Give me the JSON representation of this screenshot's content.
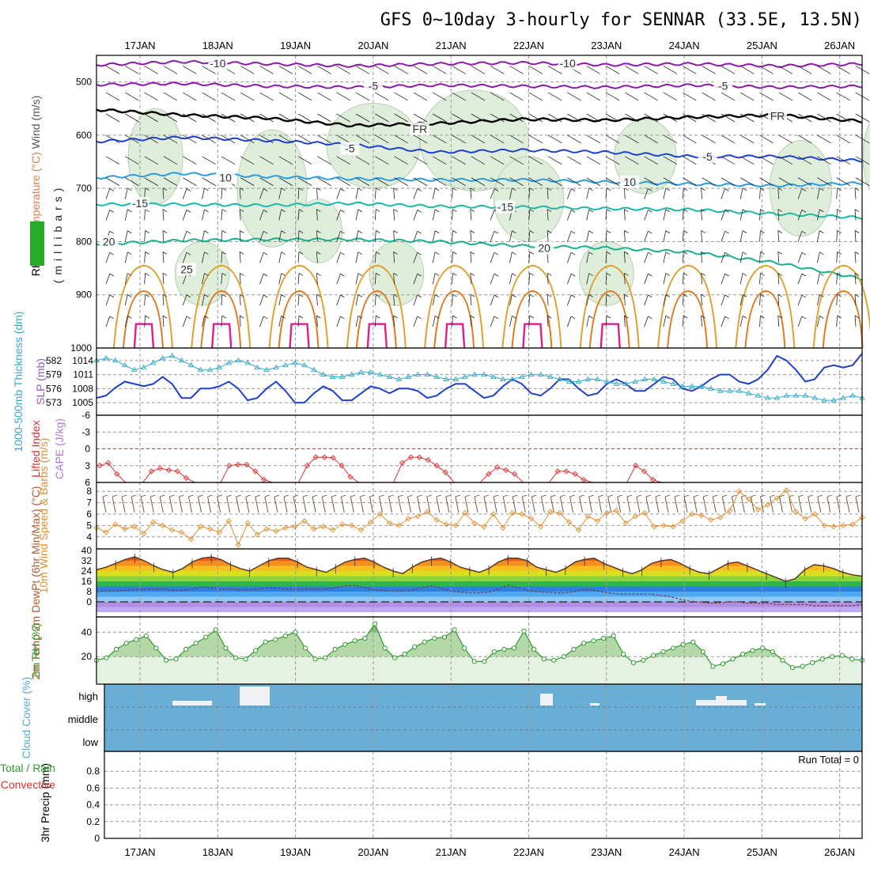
{
  "title": "GFS 0~10day 3-hourly for SENNAR (33.5E, 13.5N)",
  "dates": [
    "17JAN",
    "18JAN",
    "19JAN",
    "20JAN",
    "21JAN",
    "22JAN",
    "23JAN",
    "24JAN",
    "25JAN",
    "26JAN"
  ],
  "colors": {
    "grid": "#999999",
    "rh_fill": "#dfeedb",
    "slp": "#1f3fcc",
    "thick": "#33aacc",
    "li": "#e03030",
    "wind10": "#e09030",
    "barb": "#6b4a2a",
    "rh2m": "#2e9a2e",
    "cloud": "#6aaed6",
    "frz": "#000000"
  },
  "chart_data": [
    {
      "type": "line",
      "id": "upper_air",
      "ylabel_parts": [
        "RH (%)",
        "Temperature (°C)",
        "Wind (m/s)"
      ],
      "yaxis_letters": "(millibars)",
      "yticks": [
        500,
        600,
        700,
        800,
        900,
        1000
      ],
      "ylim": [
        450,
        1000
      ],
      "contour_labels": [
        {
          "t": "-10",
          "d": 1.0,
          "p": 465
        },
        {
          "t": "-10",
          "d": 5.5,
          "p": 465
        },
        {
          "t": "-5",
          "d": 3.0,
          "p": 507
        },
        {
          "t": "-5",
          "d": 7.5,
          "p": 507
        },
        {
          "t": "FR",
          "d": 3.6,
          "p": 588
        },
        {
          "t": "FR",
          "d": 8.2,
          "p": 564
        },
        {
          "t": "-5",
          "d": 2.7,
          "p": 625
        },
        {
          "t": "-5",
          "d": 7.3,
          "p": 640
        },
        {
          "t": "10",
          "d": 1.1,
          "p": 680
        },
        {
          "t": "10",
          "d": 6.3,
          "p": 688
        },
        {
          "t": "-15",
          "d": 0.0,
          "p": 728
        },
        {
          "t": "-15",
          "d": 4.7,
          "p": 735
        },
        {
          "t": "20",
          "d": -0.4,
          "p": 800
        },
        {
          "t": "20",
          "d": 5.2,
          "p": 812
        },
        {
          "t": "25",
          "d": 0.6,
          "p": 852
        }
      ],
      "isotherms": [
        {
          "label": "-10",
          "color": "#8a1aa8",
          "p": [
            468,
            462,
            466,
            470,
            466,
            464,
            468,
            466,
            470,
            466
          ]
        },
        {
          "label": "-5",
          "color": "#8a1aa8",
          "p": [
            505,
            503,
            508,
            510,
            506,
            508,
            510,
            506,
            510,
            508
          ]
        },
        {
          "label": "FR",
          "color": "#000000",
          "p": [
            552,
            562,
            568,
            582,
            578,
            570,
            572,
            566,
            562,
            574
          ]
        },
        {
          "label": "5",
          "color": "#1f3fcc",
          "p": [
            612,
            604,
            610,
            618,
            632,
            628,
            632,
            640,
            640,
            648
          ]
        },
        {
          "label": "10",
          "color": "#2a9de0",
          "p": [
            680,
            672,
            678,
            682,
            684,
            684,
            688,
            692,
            695,
            690
          ]
        },
        {
          "label": "15",
          "color": "#1bb8a8",
          "p": [
            730,
            730,
            732,
            728,
            734,
            735,
            738,
            740,
            748,
            755
          ]
        },
        {
          "label": "20",
          "color": "#18b090",
          "p": [
            805,
            798,
            796,
            796,
            800,
            808,
            812,
            820,
            840,
            870
          ]
        }
      ]
    },
    {
      "type": "line",
      "id": "slp_thickness",
      "ylabel_left": "1000-500mb Thickness (dm)",
      "ylabel_right": "SLP (mb)",
      "left_ticks": [
        573,
        576,
        579,
        582
      ],
      "right_ticks": [
        1005,
        1008,
        1011,
        1014
      ],
      "slp": [
        1006,
        1006.5,
        1008.2,
        1009.5,
        1009,
        1008.5,
        1009,
        1010.5,
        1009,
        1006,
        1006,
        1008,
        1008,
        1008.5,
        1009.5,
        1008,
        1005.5,
        1006,
        1008,
        1009.5,
        1007.5,
        1005,
        1005,
        1007,
        1008.5,
        1007.5,
        1005.5,
        1005.5,
        1007,
        1008.5,
        1008,
        1007,
        1008,
        1008,
        1007.5,
        1006,
        1006.5,
        1008,
        1009,
        1009,
        1007.5,
        1006,
        1006.5,
        1008.5,
        1010,
        1009,
        1007,
        1006.5,
        1008,
        1010,
        1010,
        1008,
        1006.5,
        1007,
        1009,
        1010,
        1009,
        1007.5,
        1007.5,
        1009,
        1010.5,
        1010,
        1008,
        1007.5,
        1008.5,
        1010,
        1011,
        1011,
        1009.5,
        1009,
        1010,
        1012,
        1015,
        1014,
        1012,
        1009.5,
        1010,
        1012.5,
        1013,
        1012.5,
        1013,
        1015.5
      ],
      "thick": [
        582,
        582.5,
        582,
        581,
        580,
        580.5,
        581.5,
        582.5,
        583,
        582,
        581,
        580,
        580,
        580.5,
        581.5,
        582,
        581.5,
        580.5,
        580,
        580.5,
        581,
        581.5,
        581,
        580,
        579,
        578.5,
        578.5,
        579,
        579.5,
        579.5,
        579,
        578.5,
        578,
        578.5,
        579,
        579,
        578.5,
        578,
        578,
        578.5,
        579,
        579,
        578.5,
        578,
        578,
        578.5,
        579,
        579,
        578.5,
        578,
        577.5,
        577.5,
        578,
        578,
        577.5,
        577,
        577,
        577.5,
        578,
        578,
        577.5,
        577,
        576.5,
        576.5,
        576.5,
        576,
        575.5,
        575.5,
        575.5,
        575,
        574.5,
        574,
        574,
        574.5,
        574.5,
        574.5,
        574,
        573.5,
        573.5,
        574,
        574.5,
        574
      ]
    },
    {
      "type": "line",
      "id": "lifted_cape",
      "ylabel_left": "Lifted Index",
      "ylabel_right": "CAPE (J/kg)",
      "yticks": [
        "-6",
        "-3",
        "0",
        "3",
        "6"
      ],
      "li": [
        3,
        2.5,
        4.5,
        6,
        6,
        6,
        4,
        3.5,
        3.8,
        4,
        5.2,
        6,
        6,
        6,
        6,
        3,
        2.8,
        2.8,
        4,
        5.5,
        6,
        6,
        6,
        6,
        3,
        1.5,
        1.5,
        1.6,
        3,
        5,
        6,
        6,
        6,
        6,
        6,
        2.5,
        1.5,
        1.5,
        2,
        3,
        4.2,
        6,
        6,
        6,
        6,
        4.5,
        3.3,
        3.8,
        4.5,
        6,
        6,
        6,
        6,
        4,
        4,
        4.5,
        5.5,
        6,
        6,
        6,
        6,
        6,
        3,
        4,
        5.5,
        6
      ]
    },
    {
      "type": "line",
      "id": "wind10m",
      "ylabel": "10m Wind Speed & Barbs (m/s)",
      "yticks": [
        4,
        5,
        6,
        7,
        8
      ],
      "values": [
        4.8,
        4.4,
        5.1,
        4.7,
        4.9,
        4.3,
        5.3,
        5.0,
        4.6,
        4.4,
        3.8,
        4.9,
        4.7,
        4.4,
        5.4,
        3.3,
        5.2,
        4.2,
        4.7,
        4.5,
        4.8,
        4.9,
        5.4,
        4.7,
        4.9,
        4.6,
        5.1,
        5.0,
        4.6,
        5.3,
        6.0,
        5.2,
        5.0,
        5.6,
        5.8,
        6.2,
        5.5,
        5.1,
        5.0,
        6.1,
        5.2,
        4.9,
        6.0,
        4.8,
        6.1,
        6.0,
        5.6,
        4.9,
        6.2,
        6.1,
        5.3,
        4.6,
        5.8,
        5.4,
        6.1,
        6.3,
        5.2,
        5.8,
        6.1,
        4.9,
        5.0,
        4.9,
        5.4,
        6.0,
        5.9,
        5.5,
        5.7,
        6.3,
        8.0,
        7.3,
        6.4,
        6.8,
        7.4,
        8.1,
        6.2,
        5.6,
        6.0,
        5.0,
        4.9,
        5.0,
        5.1,
        5.7
      ]
    },
    {
      "type": "area",
      "id": "temp2m",
      "ylabel": "2m Temp 2m DewPt (6hr Min/Max) (°C)",
      "yticks": [
        0,
        8,
        16,
        24,
        32,
        40
      ],
      "temp": [
        25,
        27,
        30,
        33,
        35,
        32,
        28,
        25,
        23,
        26,
        31,
        34,
        35,
        33,
        29,
        26,
        24,
        28,
        32,
        34,
        34,
        31,
        27,
        25,
        23,
        27,
        31,
        33,
        34,
        31,
        27,
        24,
        22,
        27,
        31,
        33,
        34,
        31,
        27,
        25,
        23,
        26,
        31,
        34,
        34,
        32,
        27,
        25,
        23,
        26,
        31,
        33,
        34,
        30,
        27,
        24,
        22,
        25,
        30,
        32,
        33,
        30,
        26,
        23,
        22,
        26,
        30,
        31,
        28,
        25,
        22,
        19,
        16,
        18,
        25,
        29,
        28,
        26,
        23,
        21,
        20
      ],
      "dew": [
        8,
        8.5,
        8.5,
        9,
        9.5,
        10,
        10,
        10,
        9,
        9,
        10,
        11.5,
        11,
        10,
        10,
        9.5,
        9.5,
        10,
        11,
        10.5,
        10,
        10,
        10,
        10,
        10,
        11,
        12.5,
        13,
        11,
        9.5,
        9,
        8.5,
        8.5,
        9,
        11,
        12.5,
        10.5,
        8.5,
        7.5,
        7,
        7,
        7.5,
        10,
        13,
        11,
        9,
        8,
        7.5,
        7,
        7,
        8,
        10,
        9,
        7.5,
        6.5,
        6,
        6,
        6,
        6,
        5,
        4,
        2,
        0.5,
        0,
        -1,
        -1,
        0,
        0,
        -1,
        -1,
        -1,
        -2,
        -2,
        -2,
        -2,
        -3,
        -3,
        -3,
        -3,
        -3,
        -2
      ]
    },
    {
      "type": "area",
      "id": "rh2m",
      "ylabel": "2m RH (%)",
      "yticks": [
        20,
        40
      ],
      "values": [
        17,
        19,
        26,
        31,
        34,
        37,
        27,
        17,
        18,
        26,
        31,
        36,
        42,
        27,
        19,
        18,
        25,
        32,
        34,
        37,
        40,
        27,
        18,
        19,
        26,
        30,
        33,
        35,
        47,
        27,
        19,
        22,
        28,
        32,
        35,
        36,
        42,
        27,
        16,
        16,
        24,
        26,
        27,
        41,
        26,
        18,
        17,
        20,
        26,
        31,
        33,
        35,
        37,
        22,
        15,
        17,
        21,
        24,
        27,
        30,
        32,
        24,
        12,
        14,
        18,
        22,
        25,
        27,
        24,
        17,
        11,
        12,
        15,
        18,
        20,
        21,
        18,
        17
      ]
    },
    {
      "type": "bar",
      "id": "cloud",
      "ylabel": "Cloud Cover (%)",
      "yticks": [
        "high",
        "middle",
        "low"
      ]
    },
    {
      "type": "bar",
      "id": "precip",
      "ylabel": "3hr Precip (mm)",
      "legend_left": "Total / Rain",
      "legend_conv": "Convective",
      "run_total": "Run Total = 0",
      "yticks": [
        "0",
        "0.2",
        "0.4",
        "0.6",
        "0.8"
      ],
      "values": []
    }
  ]
}
